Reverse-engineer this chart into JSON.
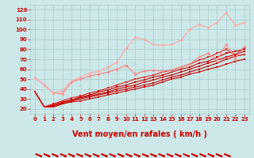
{
  "bg_color": "#cce8e8",
  "grid_color": "#aacccc",
  "xlabel": "Vent moyen/en rafales ( km/h )",
  "xlim": [
    -0.5,
    23.5
  ],
  "ylim": [
    15,
    125
  ],
  "yticks": [
    20,
    30,
    40,
    50,
    60,
    70,
    80,
    90,
    100,
    110,
    120
  ],
  "xticks": [
    0,
    1,
    2,
    3,
    4,
    5,
    6,
    7,
    8,
    9,
    10,
    11,
    12,
    13,
    14,
    15,
    16,
    17,
    18,
    19,
    20,
    21,
    22,
    23
  ],
  "series": [
    {
      "x": [
        0,
        1,
        2,
        3,
        4,
        5,
        6,
        7,
        8,
        9,
        10,
        11,
        12,
        13,
        14,
        15,
        16,
        17,
        18,
        19,
        20,
        21,
        22,
        23
      ],
      "y": [
        37,
        22,
        22,
        25,
        27,
        28,
        30,
        32,
        34,
        36,
        38,
        40,
        42,
        44,
        47,
        50,
        52,
        55,
        57,
        60,
        62,
        65,
        68,
        70
      ],
      "color": "#cc0000",
      "lw": 0.8,
      "marker": "s",
      "ms": 1.5
    },
    {
      "x": [
        0,
        1,
        2,
        3,
        4,
        5,
        6,
        7,
        8,
        9,
        10,
        11,
        12,
        13,
        14,
        15,
        16,
        17,
        18,
        19,
        20,
        21,
        22,
        23
      ],
      "y": [
        37,
        22,
        22,
        25,
        28,
        30,
        32,
        34,
        36,
        38,
        40,
        42,
        44,
        46,
        49,
        52,
        54,
        57,
        60,
        63,
        66,
        70,
        73,
        75
      ],
      "color": "#cc0000",
      "lw": 0.8,
      "marker": "s",
      "ms": 1.5
    },
    {
      "x": [
        0,
        1,
        2,
        3,
        4,
        5,
        6,
        7,
        8,
        9,
        10,
        11,
        12,
        13,
        14,
        15,
        16,
        17,
        18,
        19,
        20,
        21,
        22,
        23
      ],
      "y": [
        37,
        22,
        23,
        26,
        28,
        31,
        33,
        35,
        37,
        40,
        42,
        44,
        47,
        49,
        52,
        54,
        57,
        60,
        63,
        66,
        69,
        72,
        75,
        78
      ],
      "color": "#cc0000",
      "lw": 0.8,
      "marker": "s",
      "ms": 1.5
    },
    {
      "x": [
        0,
        1,
        2,
        3,
        4,
        5,
        6,
        7,
        8,
        9,
        10,
        11,
        12,
        13,
        14,
        15,
        16,
        17,
        18,
        19,
        20,
        21,
        22,
        23
      ],
      "y": [
        37,
        22,
        24,
        27,
        29,
        32,
        34,
        37,
        39,
        42,
        44,
        47,
        49,
        52,
        54,
        57,
        60,
        62,
        66,
        68,
        72,
        76,
        78,
        80
      ],
      "color": "#cc0000",
      "lw": 0.8,
      "marker": "s",
      "ms": 1.5
    },
    {
      "x": [
        0,
        1,
        2,
        3,
        4,
        5,
        6,
        7,
        8,
        9,
        10,
        11,
        12,
        13,
        14,
        15,
        16,
        17,
        18,
        19,
        20,
        21,
        22,
        23
      ],
      "y": [
        37,
        22,
        25,
        28,
        31,
        33,
        36,
        38,
        41,
        44,
        47,
        50,
        52,
        54,
        57,
        59,
        62,
        65,
        69,
        72,
        76,
        80,
        74,
        82
      ],
      "color": "#dd2222",
      "lw": 0.8,
      "marker": "s",
      "ms": 1.5
    },
    {
      "x": [
        0,
        1,
        2,
        3,
        4,
        5,
        6,
        7,
        8,
        9,
        10,
        11,
        12,
        13,
        14,
        15,
        16,
        17,
        18,
        19,
        20,
        21,
        22,
        23
      ],
      "y": [
        51,
        44,
        36,
        35,
        47,
        50,
        53,
        55,
        57,
        60,
        64,
        55,
        58,
        59,
        58,
        59,
        62,
        65,
        72,
        76,
        69,
        85,
        71,
        83
      ],
      "color": "#ff8888",
      "lw": 0.9,
      "marker": "D",
      "ms": 2.0
    },
    {
      "x": [
        0,
        1,
        2,
        3,
        4,
        5,
        6,
        7,
        8,
        9,
        10,
        11,
        12,
        13,
        14,
        15,
        16,
        17,
        18,
        19,
        20,
        21,
        22,
        23
      ],
      "y": [
        51,
        44,
        36,
        38,
        48,
        52,
        56,
        58,
        62,
        67,
        81,
        92,
        90,
        85,
        84,
        85,
        89,
        100,
        105,
        102,
        107,
        117,
        104,
        107
      ],
      "color": "#ffaaaa",
      "lw": 0.9,
      "marker": "D",
      "ms": 2.0
    }
  ],
  "tick_color": "#cc0000",
  "tick_fontsize": 5,
  "xlabel_fontsize": 7,
  "arrow_color": "#cc0000"
}
